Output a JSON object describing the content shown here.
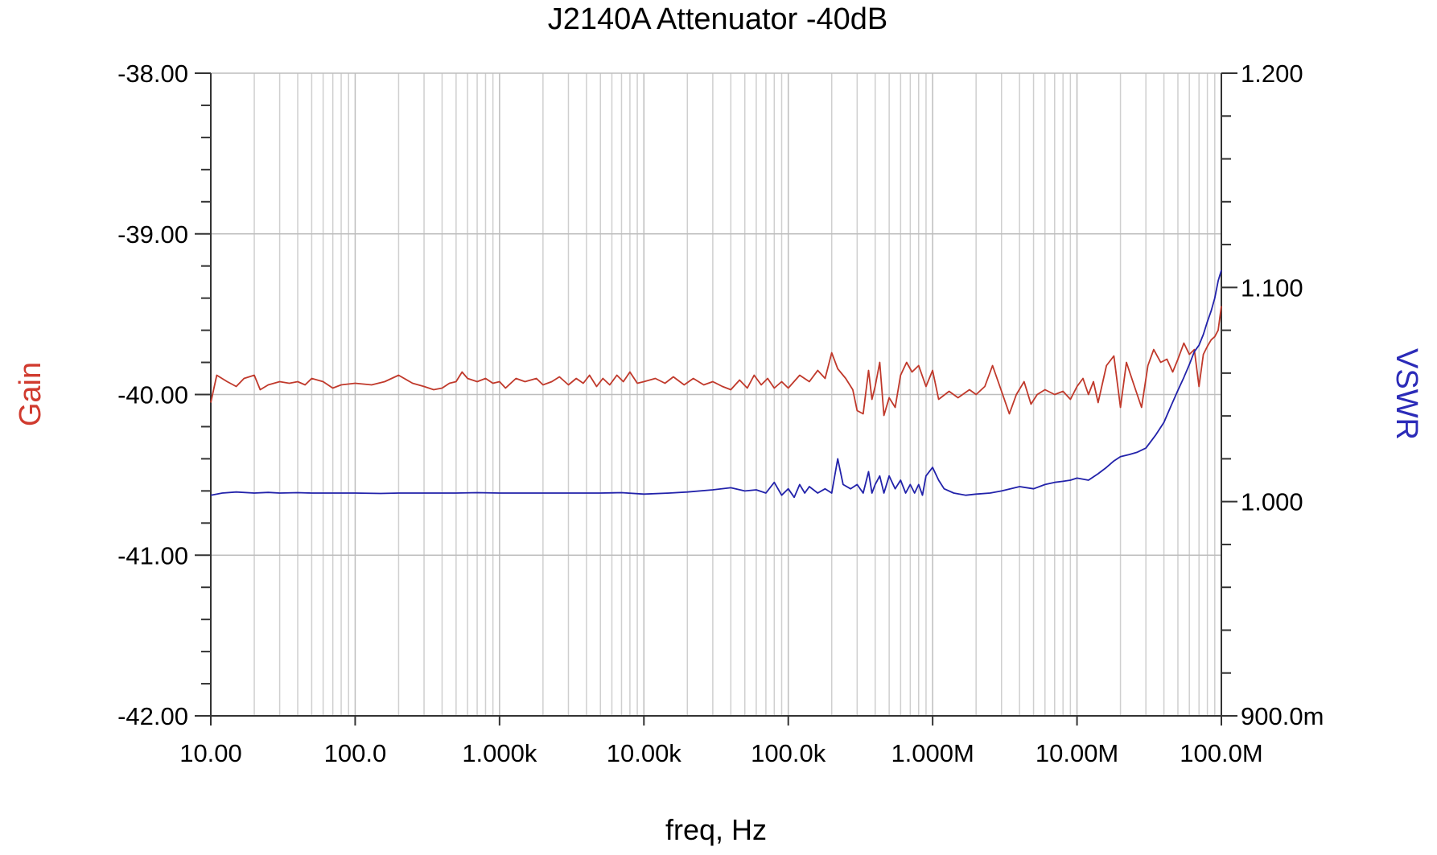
{
  "chart_data": {
    "type": "line",
    "title": "J2140A Attenuator   -40dB",
    "xlabel": "freq, Hz",
    "ylabel_left": "Gain",
    "ylabel_right": "VSWR",
    "x_scale": "log",
    "xlim": [
      10,
      100000000
    ],
    "x_ticks": [
      {
        "value": 10,
        "label": "10.00"
      },
      {
        "value": 100,
        "label": "100.0"
      },
      {
        "value": 1000,
        "label": "1.000k"
      },
      {
        "value": 10000,
        "label": "10.00k"
      },
      {
        "value": 100000,
        "label": "100.0k"
      },
      {
        "value": 1000000,
        "label": "1.000M"
      },
      {
        "value": 10000000,
        "label": "10.00M"
      },
      {
        "value": 100000000,
        "label": "100.0M"
      }
    ],
    "ylim_left": [
      -42,
      -38
    ],
    "y_ticks_left": [
      {
        "value": -38,
        "label": "-38.00"
      },
      {
        "value": -39,
        "label": "-39.00"
      },
      {
        "value": -40,
        "label": "-40.00"
      },
      {
        "value": -41,
        "label": "-41.00"
      },
      {
        "value": -42,
        "label": "-42.00"
      }
    ],
    "ylim_right": [
      0.9,
      1.2
    ],
    "y_ticks_right": [
      {
        "value": 1.2,
        "label": "1.200"
      },
      {
        "value": 1.1,
        "label": "1.100"
      },
      {
        "value": 1.0,
        "label": "1.000"
      },
      {
        "value": 0.9,
        "label": "900.0m"
      }
    ],
    "grid": true,
    "legend": "none",
    "series": [
      {
        "axis": "left",
        "color": "#c0392b",
        "points": [
          [
            10,
            -40.05
          ],
          [
            11,
            -39.88
          ],
          [
            13,
            -39.92
          ],
          [
            15,
            -39.95
          ],
          [
            17,
            -39.9
          ],
          [
            20,
            -39.88
          ],
          [
            22,
            -39.97
          ],
          [
            25,
            -39.94
          ],
          [
            30,
            -39.92
          ],
          [
            35,
            -39.93
          ],
          [
            40,
            -39.92
          ],
          [
            45,
            -39.94
          ],
          [
            50,
            -39.9
          ],
          [
            60,
            -39.92
          ],
          [
            70,
            -39.96
          ],
          [
            80,
            -39.94
          ],
          [
            100,
            -39.93
          ],
          [
            130,
            -39.94
          ],
          [
            160,
            -39.92
          ],
          [
            200,
            -39.88
          ],
          [
            250,
            -39.93
          ],
          [
            300,
            -39.95
          ],
          [
            350,
            -39.97
          ],
          [
            400,
            -39.96
          ],
          [
            450,
            -39.93
          ],
          [
            500,
            -39.92
          ],
          [
            550,
            -39.86
          ],
          [
            600,
            -39.9
          ],
          [
            700,
            -39.92
          ],
          [
            800,
            -39.9
          ],
          [
            900,
            -39.93
          ],
          [
            1000,
            -39.92
          ],
          [
            1100,
            -39.96
          ],
          [
            1300,
            -39.9
          ],
          [
            1500,
            -39.92
          ],
          [
            1800,
            -39.9
          ],
          [
            2000,
            -39.94
          ],
          [
            2300,
            -39.92
          ],
          [
            2600,
            -39.89
          ],
          [
            3000,
            -39.94
          ],
          [
            3400,
            -39.9
          ],
          [
            3800,
            -39.93
          ],
          [
            4200,
            -39.88
          ],
          [
            4700,
            -39.95
          ],
          [
            5200,
            -39.9
          ],
          [
            5800,
            -39.94
          ],
          [
            6500,
            -39.88
          ],
          [
            7200,
            -39.92
          ],
          [
            8000,
            -39.86
          ],
          [
            9000,
            -39.93
          ],
          [
            10000,
            -39.92
          ],
          [
            12000,
            -39.9
          ],
          [
            14000,
            -39.93
          ],
          [
            16000,
            -39.89
          ],
          [
            19000,
            -39.94
          ],
          [
            22000,
            -39.9
          ],
          [
            26000,
            -39.94
          ],
          [
            30000,
            -39.92
          ],
          [
            35000,
            -39.95
          ],
          [
            40000,
            -39.97
          ],
          [
            46000,
            -39.91
          ],
          [
            52000,
            -39.96
          ],
          [
            58000,
            -39.88
          ],
          [
            65000,
            -39.94
          ],
          [
            72000,
            -39.9
          ],
          [
            80000,
            -39.96
          ],
          [
            90000,
            -39.92
          ],
          [
            100000,
            -39.96
          ],
          [
            120000,
            -39.88
          ],
          [
            140000,
            -39.92
          ],
          [
            160000,
            -39.85
          ],
          [
            180000,
            -39.9
          ],
          [
            200000,
            -39.74
          ],
          [
            220000,
            -39.84
          ],
          [
            250000,
            -39.9
          ],
          [
            280000,
            -39.97
          ],
          [
            300000,
            -40.1
          ],
          [
            330000,
            -40.12
          ],
          [
            360000,
            -39.85
          ],
          [
            380000,
            -40.03
          ],
          [
            400000,
            -39.95
          ],
          [
            430000,
            -39.8
          ],
          [
            460000,
            -40.13
          ],
          [
            500000,
            -40.02
          ],
          [
            550000,
            -40.08
          ],
          [
            600000,
            -39.88
          ],
          [
            660000,
            -39.8
          ],
          [
            720000,
            -39.86
          ],
          [
            800000,
            -39.82
          ],
          [
            900000,
            -39.95
          ],
          [
            1000000,
            -39.85
          ],
          [
            1100000,
            -40.03
          ],
          [
            1300000,
            -39.98
          ],
          [
            1500000,
            -40.02
          ],
          [
            1800000,
            -39.97
          ],
          [
            2000000,
            -40.0
          ],
          [
            2300000,
            -39.95
          ],
          [
            2600000,
            -39.82
          ],
          [
            3000000,
            -39.98
          ],
          [
            3400000,
            -40.12
          ],
          [
            3800000,
            -40.0
          ],
          [
            4300000,
            -39.92
          ],
          [
            4800000,
            -40.06
          ],
          [
            5300000,
            -40.0
          ],
          [
            6000000,
            -39.97
          ],
          [
            7000000,
            -40.0
          ],
          [
            8000000,
            -39.98
          ],
          [
            9000000,
            -40.03
          ],
          [
            10000000,
            -39.95
          ],
          [
            11000000,
            -39.9
          ],
          [
            12000000,
            -40.0
          ],
          [
            13000000,
            -39.92
          ],
          [
            14000000,
            -40.05
          ],
          [
            16000000,
            -39.82
          ],
          [
            18000000,
            -39.76
          ],
          [
            20000000,
            -40.08
          ],
          [
            22000000,
            -39.8
          ],
          [
            25000000,
            -39.95
          ],
          [
            28000000,
            -40.08
          ],
          [
            31000000,
            -39.82
          ],
          [
            34000000,
            -39.72
          ],
          [
            38000000,
            -39.8
          ],
          [
            42000000,
            -39.78
          ],
          [
            46000000,
            -39.86
          ],
          [
            50000000,
            -39.78
          ],
          [
            55000000,
            -39.68
          ],
          [
            60000000,
            -39.75
          ],
          [
            65000000,
            -39.72
          ],
          [
            70000000,
            -39.95
          ],
          [
            75000000,
            -39.75
          ],
          [
            80000000,
            -39.7
          ],
          [
            85000000,
            -39.66
          ],
          [
            90000000,
            -39.64
          ],
          [
            95000000,
            -39.6
          ],
          [
            100000000,
            -39.45
          ]
        ]
      },
      {
        "axis": "right",
        "color": "#2222aa",
        "points": [
          [
            10,
            1.003
          ],
          [
            12,
            1.004
          ],
          [
            15,
            1.0045
          ],
          [
            20,
            1.004
          ],
          [
            25,
            1.0043
          ],
          [
            30,
            1.004
          ],
          [
            40,
            1.0042
          ],
          [
            50,
            1.004
          ],
          [
            70,
            1.004
          ],
          [
            100,
            1.004
          ],
          [
            150,
            1.0038
          ],
          [
            200,
            1.004
          ],
          [
            300,
            1.004
          ],
          [
            500,
            1.004
          ],
          [
            700,
            1.0042
          ],
          [
            1000,
            1.004
          ],
          [
            1500,
            1.004
          ],
          [
            2000,
            1.004
          ],
          [
            3000,
            1.004
          ],
          [
            5000,
            1.004
          ],
          [
            7000,
            1.0042
          ],
          [
            10000,
            1.0035
          ],
          [
            15000,
            1.004
          ],
          [
            20000,
            1.0045
          ],
          [
            30000,
            1.0055
          ],
          [
            40000,
            1.0065
          ],
          [
            50000,
            1.005
          ],
          [
            60000,
            1.0055
          ],
          [
            70000,
            1.004
          ],
          [
            80000,
            1.009
          ],
          [
            90000,
            1.003
          ],
          [
            100000,
            1.006
          ],
          [
            110000,
            1.002
          ],
          [
            120000,
            1.008
          ],
          [
            130000,
            1.004
          ],
          [
            140000,
            1.007
          ],
          [
            160000,
            1.004
          ],
          [
            180000,
            1.006
          ],
          [
            200000,
            1.004
          ],
          [
            220000,
            1.02
          ],
          [
            240000,
            1.008
          ],
          [
            270000,
            1.006
          ],
          [
            300000,
            1.008
          ],
          [
            330000,
            1.004
          ],
          [
            360000,
            1.014
          ],
          [
            380000,
            1.004
          ],
          [
            400000,
            1.008
          ],
          [
            430000,
            1.012
          ],
          [
            460000,
            1.004
          ],
          [
            500000,
            1.012
          ],
          [
            550000,
            1.006
          ],
          [
            600000,
            1.01
          ],
          [
            650000,
            1.004
          ],
          [
            700000,
            1.008
          ],
          [
            750000,
            1.004
          ],
          [
            800000,
            1.008
          ],
          [
            850000,
            1.003
          ],
          [
            900000,
            1.012
          ],
          [
            1000000,
            1.016
          ],
          [
            1100000,
            1.01
          ],
          [
            1200000,
            1.006
          ],
          [
            1400000,
            1.004
          ],
          [
            1700000,
            1.003
          ],
          [
            2000000,
            1.0035
          ],
          [
            2500000,
            1.004
          ],
          [
            3000000,
            1.005
          ],
          [
            4000000,
            1.007
          ],
          [
            5000000,
            1.006
          ],
          [
            6000000,
            1.008
          ],
          [
            7000000,
            1.009
          ],
          [
            8000000,
            1.0095
          ],
          [
            9000000,
            1.01
          ],
          [
            10000000,
            1.011
          ],
          [
            12000000,
            1.01
          ],
          [
            14000000,
            1.013
          ],
          [
            16000000,
            1.016
          ],
          [
            18000000,
            1.019
          ],
          [
            20000000,
            1.021
          ],
          [
            23000000,
            1.022
          ],
          [
            26000000,
            1.023
          ],
          [
            30000000,
            1.025
          ],
          [
            35000000,
            1.031
          ],
          [
            40000000,
            1.037
          ],
          [
            45000000,
            1.045
          ],
          [
            50000000,
            1.052
          ],
          [
            55000000,
            1.058
          ],
          [
            60000000,
            1.064
          ],
          [
            65000000,
            1.07
          ],
          [
            70000000,
            1.073
          ],
          [
            75000000,
            1.078
          ],
          [
            80000000,
            1.084
          ],
          [
            85000000,
            1.089
          ],
          [
            90000000,
            1.095
          ],
          [
            95000000,
            1.103
          ],
          [
            100000000,
            1.108
          ]
        ]
      }
    ]
  }
}
